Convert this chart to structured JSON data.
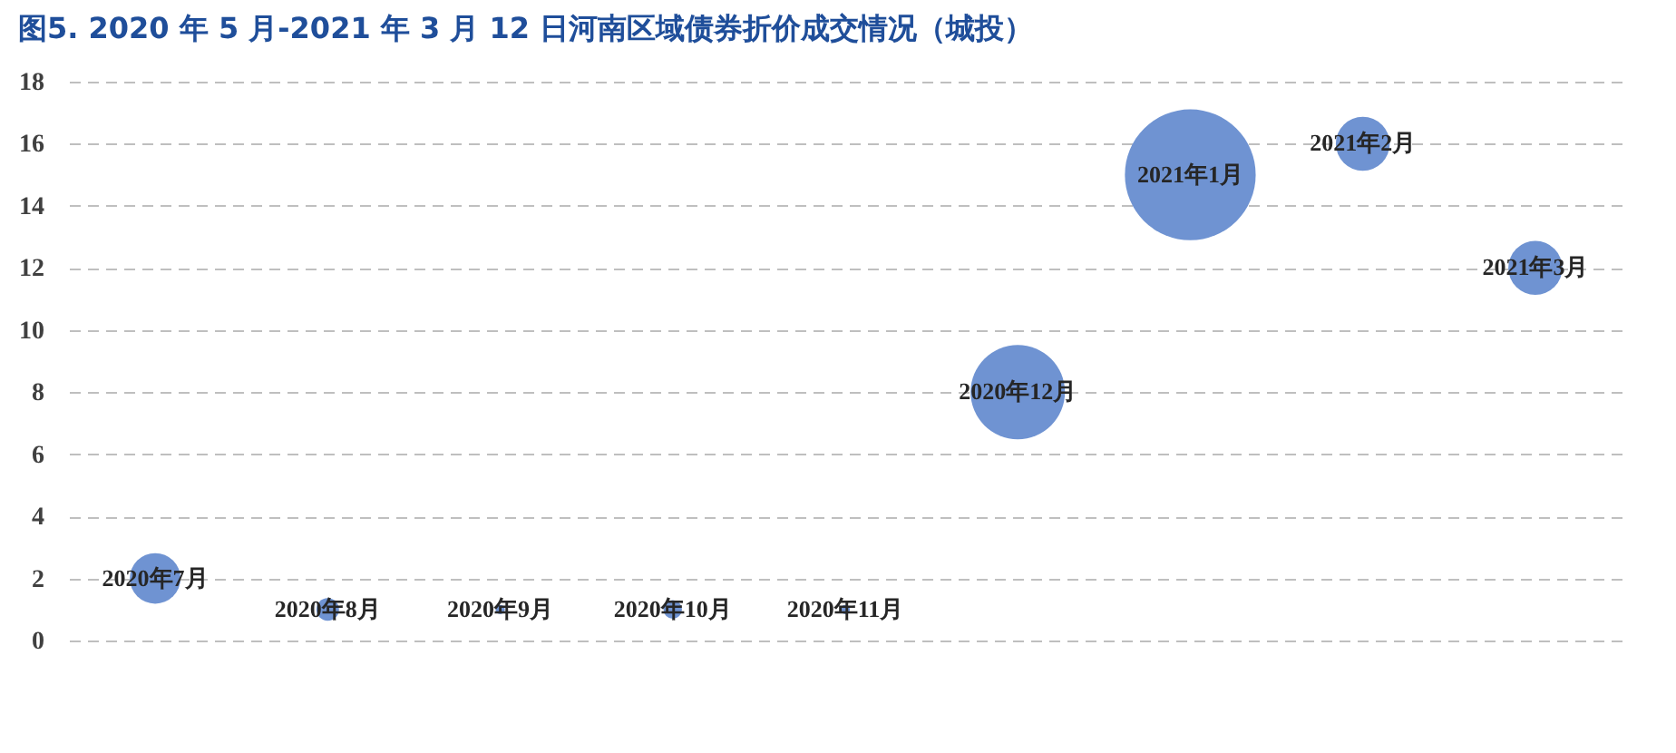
{
  "chart_data": {
    "type": "bubble",
    "title": "图5. 2020 年 5 月-2021 年 3 月 12 日河南区域债券折价成交情况（城投）",
    "categories": [
      "2020年7月",
      "2020年8月",
      "2020年9月",
      "2020年10月",
      "2020年11月",
      "2020年12月",
      "2021年1月",
      "2021年2月",
      "2021年3月"
    ],
    "series": [
      {
        "color": "#6f93d2",
        "values": [
          2,
          1,
          1,
          1,
          1,
          8,
          15,
          16,
          12
        ],
        "sizes": [
          0.15,
          0.03,
          0.005,
          0.02,
          0.005,
          0.52,
          1,
          0.17,
          0.17
        ]
      }
    ],
    "ylim": [
      0,
      18
    ],
    "yticks": [
      0,
      2,
      4,
      6,
      8,
      10,
      12,
      14,
      16,
      18
    ],
    "grid": "y",
    "tick_labels": "y",
    "legend": false
  }
}
